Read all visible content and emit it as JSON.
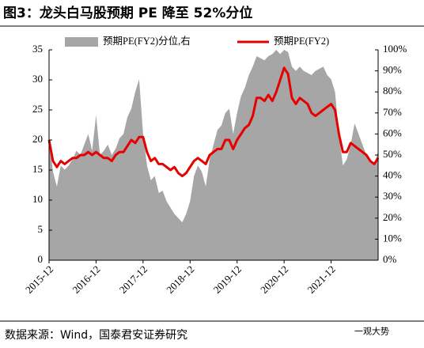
{
  "chart_data": {
    "type": "area-line",
    "title": "图3：龙头白马股预期 PE 降至 52%分位",
    "source": "数据来源：Wind，国泰君安证券研究",
    "watermark": "一观大势",
    "categories": [
      "2015-12",
      null,
      null,
      null,
      null,
      null,
      null,
      null,
      null,
      null,
      null,
      null,
      "2016-12",
      null,
      null,
      null,
      null,
      null,
      null,
      null,
      null,
      null,
      null,
      null,
      "2017-12",
      null,
      null,
      null,
      null,
      null,
      null,
      null,
      null,
      null,
      null,
      null,
      "2018-12",
      null,
      null,
      null,
      null,
      null,
      null,
      null,
      null,
      null,
      null,
      null,
      "2019-12",
      null,
      null,
      null,
      null,
      null,
      null,
      null,
      null,
      null,
      null,
      null,
      "2020-12",
      null,
      null,
      null,
      null,
      null,
      null,
      null,
      null,
      null,
      null,
      null,
      "2021-12",
      null,
      null,
      null,
      null,
      null,
      null,
      null,
      null,
      null,
      null,
      null,
      null
    ],
    "series": [
      {
        "name": "预期PE(FY2)分位,右",
        "color": "#a6a6a6",
        "axis": "y2",
        "kind": "area",
        "values": [
          58,
          42,
          35,
          45,
          43,
          45,
          48,
          52,
          50,
          55,
          60,
          52,
          69,
          50,
          52,
          55,
          50,
          53,
          58,
          60,
          68,
          72,
          80,
          86,
          60,
          45,
          38,
          40,
          32,
          33,
          28,
          25,
          22,
          20,
          18,
          22,
          28,
          40,
          45,
          42,
          35,
          48,
          55,
          62,
          64,
          70,
          72,
          60,
          70,
          78,
          82,
          88,
          92,
          97,
          96,
          95,
          97,
          98,
          100,
          98,
          100,
          99,
          92,
          90,
          92,
          90,
          89,
          88,
          90,
          91,
          92,
          88,
          86,
          80,
          60,
          45,
          48,
          55,
          65,
          60,
          55,
          50,
          48,
          45,
          52
        ]
      },
      {
        "name": "预期PE(FY2)",
        "color": "#e60000",
        "axis": "y",
        "kind": "line",
        "values": [
          20,
          16.5,
          15.5,
          16.5,
          16,
          16.5,
          17,
          17,
          17.5,
          17.5,
          18,
          17.5,
          18,
          17.5,
          17,
          17,
          16.5,
          17.5,
          18,
          18,
          19,
          20,
          19.5,
          20.5,
          20.5,
          18,
          16.5,
          17,
          16,
          16,
          15.5,
          15,
          15.5,
          14.5,
          14,
          14.5,
          15.5,
          16.5,
          17,
          16.5,
          16,
          17.5,
          18,
          18.5,
          18.5,
          20,
          20,
          18.5,
          20,
          21,
          22,
          22.5,
          24,
          27,
          27,
          26.5,
          27.5,
          26.5,
          28,
          30,
          32,
          31,
          27,
          26,
          27,
          26.5,
          26,
          24.5,
          24,
          24.5,
          25,
          25.5,
          26,
          25,
          21,
          18,
          18,
          19.5,
          19,
          18.5,
          18,
          17.5,
          16.5,
          16,
          17
        ]
      }
    ],
    "ylim": [
      0,
      35
    ],
    "yticks": [
      0,
      5,
      10,
      15,
      20,
      25,
      30,
      35
    ],
    "y2lim": [
      0,
      100
    ],
    "y2ticks": [
      {
        "value": 0,
        "label": "0%"
      },
      {
        "value": 10,
        "label": "10%"
      },
      {
        "value": 20,
        "label": "20%"
      },
      {
        "value": 30,
        "label": "30%"
      },
      {
        "value": 40,
        "label": "40%"
      },
      {
        "value": 50,
        "label": "50%"
      },
      {
        "value": 60,
        "label": "60%"
      },
      {
        "value": 70,
        "label": "70%"
      },
      {
        "value": 80,
        "label": "80%"
      },
      {
        "value": 90,
        "label": "90%"
      },
      {
        "value": 100,
        "label": "100%"
      }
    ],
    "legend": "top"
  }
}
